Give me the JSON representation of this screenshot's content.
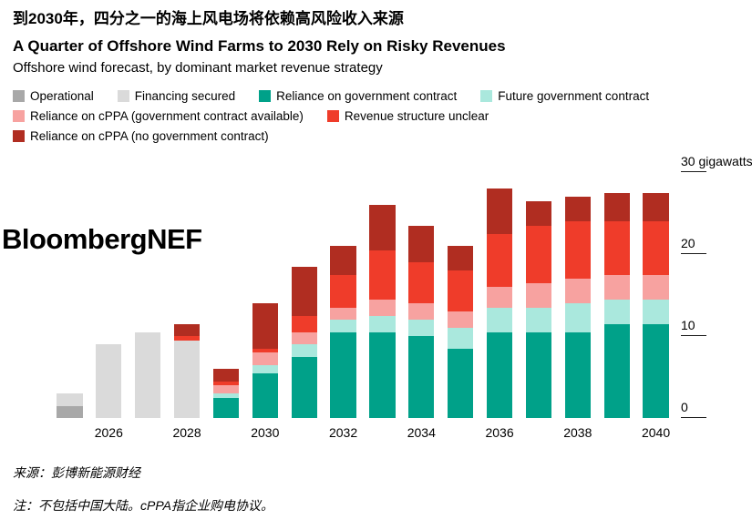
{
  "header": {
    "title_zh": "到2030年，四分之一的海上风电场将依赖高风险收入来源",
    "title_en": "A Quarter of Offshore Wind Farms to 2030 Rely on Risky Revenues",
    "subtitle": "Offshore wind forecast, by dominant market revenue strategy"
  },
  "watermark": "BloombergNEF",
  "legend": {
    "rows": [
      [
        {
          "label": "Operational",
          "color": "#a8a8a8"
        },
        {
          "label": "Financing secured",
          "color": "#dadada"
        },
        {
          "label": "Reliance on government contract",
          "color": "#00a189"
        },
        {
          "label": "Future government contract",
          "color": "#aae8dd"
        },
        {
          "label": "Reliance on cPPA (government contract available)",
          "color": "#f7a2a0"
        },
        {
          "label": "Revenue structure unclear",
          "color": "#ef3c2a"
        },
        {
          "label": "Reliance on cPPA (no government contract)",
          "color": "#b02d21"
        }
      ]
    ],
    "row_layout": [
      [
        0,
        1,
        2,
        3
      ],
      [
        4,
        5
      ],
      [
        6
      ]
    ]
  },
  "axis": {
    "ticks": [
      {
        "value": 30,
        "label": "30 gigawatts"
      },
      {
        "value": 20,
        "label": "20"
      },
      {
        "value": 10,
        "label": "10"
      },
      {
        "value": 0,
        "label": "0"
      }
    ]
  },
  "chart_data": {
    "type": "bar",
    "stacked": true,
    "title": "A Quarter of Offshore Wind Farms to 2030 Rely on Risky Revenues",
    "subtitle": "Offshore wind forecast, by dominant market revenue strategy",
    "ylabel": "gigawatts",
    "ylim": [
      0,
      30
    ],
    "yticks": [
      0,
      10,
      20,
      30
    ],
    "grid": false,
    "legend_position": "top",
    "x": [
      2025,
      2026,
      2027,
      2028,
      2029,
      2030,
      2031,
      2032,
      2033,
      2034,
      2035,
      2036,
      2037,
      2038,
      2039,
      2040
    ],
    "x_labeled_ticks": [
      2026,
      2028,
      2030,
      2032,
      2034,
      2036,
      2038,
      2040
    ],
    "series": [
      {
        "name": "Operational",
        "color": "#a8a8a8",
        "values": [
          1.5,
          0,
          0,
          0,
          0,
          0,
          0,
          0,
          0,
          0,
          0,
          0,
          0,
          0,
          0,
          0
        ]
      },
      {
        "name": "Financing secured",
        "color": "#dadada",
        "values": [
          1.5,
          9,
          10.5,
          9.5,
          0,
          0,
          0,
          0,
          0,
          0,
          0,
          0,
          0,
          0,
          0,
          0
        ]
      },
      {
        "name": "Reliance on government contract",
        "color": "#00a189",
        "values": [
          0,
          0,
          0,
          0,
          2.5,
          5.5,
          7.5,
          10.5,
          10.5,
          10,
          8.5,
          10.5,
          10.5,
          10.5,
          11.5,
          11.5
        ]
      },
      {
        "name": "Future government contract",
        "color": "#aae8dd",
        "values": [
          0,
          0,
          0,
          0,
          0.5,
          1,
          1.5,
          1.5,
          2,
          2,
          2.5,
          3,
          3,
          3.5,
          3,
          3
        ]
      },
      {
        "name": "Reliance on cPPA (government contract available)",
        "color": "#f7a2a0",
        "values": [
          0,
          0,
          0,
          0,
          1,
          1.5,
          1.5,
          1.5,
          2,
          2,
          2,
          2.5,
          3,
          3,
          3,
          3
        ]
      },
      {
        "name": "Revenue structure unclear",
        "color": "#ef3c2a",
        "values": [
          0,
          0,
          0,
          0.5,
          0.5,
          0.5,
          2,
          4,
          6,
          5,
          5,
          6.5,
          7,
          7,
          6.5,
          6.5
        ]
      },
      {
        "name": "Reliance on cPPA (no government contract)",
        "color": "#b02d21",
        "values": [
          0,
          0,
          0,
          1.5,
          1.5,
          5.5,
          6,
          3.5,
          5.5,
          4.5,
          3,
          5.5,
          3,
          3,
          3.5,
          3.5
        ]
      }
    ]
  },
  "footer": {
    "source": "来源：彭博新能源财经",
    "note": "注：不包括中国大陆。cPPA指企业购电协议。"
  }
}
